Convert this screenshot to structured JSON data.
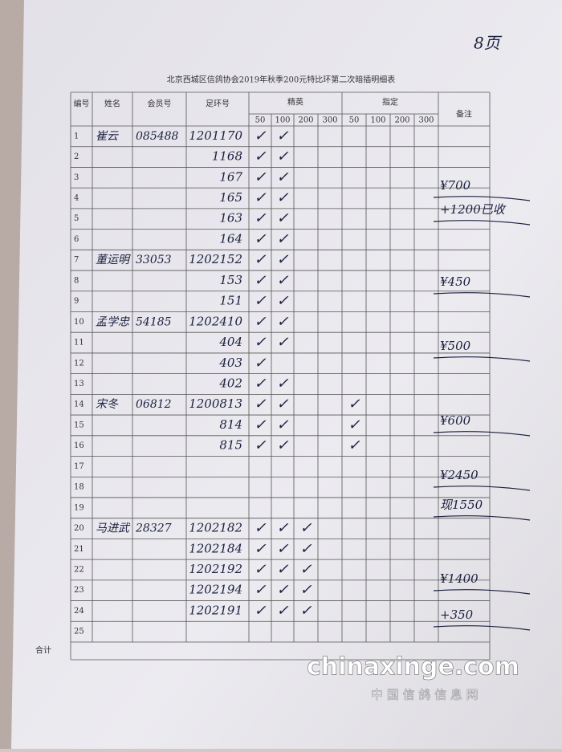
{
  "page_number": "8页",
  "title": "北京西城区信鸽协会2019年秋季200元特比环第二次暗插明细表",
  "header": {
    "no": "编号",
    "name": "姓名",
    "member": "会员号",
    "ring": "足环号",
    "elite": "精英",
    "designated": "指定",
    "elite_cols": [
      "50",
      "100",
      "200",
      "300"
    ],
    "designated_cols": [
      "50",
      "100",
      "200",
      "300"
    ],
    "remarks": "备注"
  },
  "rows": [
    [
      "1",
      "崔云",
      "085488",
      "1201170",
      "✓",
      "✓",
      null,
      null,
      null,
      null,
      null,
      null
    ],
    [
      "2",
      null,
      null,
      "1168",
      "✓",
      "✓",
      null,
      null,
      null,
      null,
      null,
      null
    ],
    [
      "3",
      null,
      null,
      "167",
      "✓",
      "✓",
      null,
      null,
      null,
      null,
      null,
      null
    ],
    [
      "4",
      null,
      null,
      "165",
      "✓",
      "✓",
      null,
      null,
      null,
      null,
      null,
      null
    ],
    [
      "5",
      null,
      null,
      "163",
      "✓",
      "✓",
      null,
      null,
      null,
      null,
      null,
      null
    ],
    [
      "6",
      null,
      null,
      "164",
      "✓",
      "✓",
      null,
      null,
      null,
      null,
      null,
      null
    ],
    [
      "7",
      "董运明",
      "33053",
      "1202152",
      "✓",
      "✓",
      null,
      null,
      null,
      null,
      null,
      null
    ],
    [
      "8",
      null,
      null,
      "153",
      "✓",
      "✓",
      null,
      null,
      null,
      null,
      null,
      null
    ],
    [
      "9",
      null,
      null,
      "151",
      "✓",
      "✓",
      null,
      null,
      null,
      null,
      null,
      null
    ],
    [
      "10",
      "孟学忠",
      "54185",
      "1202410",
      "✓",
      "✓",
      null,
      null,
      null,
      null,
      null,
      null
    ],
    [
      "11",
      null,
      null,
      "404",
      "✓",
      "✓",
      null,
      null,
      null,
      null,
      null,
      null
    ],
    [
      "12",
      null,
      null,
      "403",
      "✓",
      null,
      null,
      null,
      null,
      null,
      null,
      null
    ],
    [
      "13",
      null,
      null,
      "402",
      "✓",
      "✓",
      null,
      null,
      null,
      null,
      null,
      null
    ],
    [
      "14",
      "宋冬",
      "06812",
      "1200813",
      "✓",
      "✓",
      null,
      null,
      "✓",
      null,
      null,
      null
    ],
    [
      "15",
      null,
      null,
      "814",
      "✓",
      "✓",
      null,
      null,
      "✓",
      null,
      null,
      null
    ],
    [
      "16",
      null,
      null,
      "815",
      "✓",
      "✓",
      null,
      null,
      "✓",
      null,
      null,
      null
    ],
    [
      "17",
      null,
      null,
      null,
      null,
      null,
      null,
      null,
      null,
      null,
      null,
      null
    ],
    [
      "18",
      null,
      null,
      null,
      null,
      null,
      null,
      null,
      null,
      null,
      null,
      null
    ],
    [
      "19",
      null,
      null,
      null,
      null,
      null,
      null,
      null,
      null,
      null,
      null,
      null
    ],
    [
      "20",
      "马进武",
      "28327",
      "1202182",
      "✓",
      "✓",
      "✓",
      null,
      null,
      null,
      null,
      null
    ],
    [
      "21",
      null,
      null,
      "1202184",
      "✓",
      "✓",
      "✓",
      null,
      null,
      null,
      null,
      null
    ],
    [
      "22",
      null,
      null,
      "1202192",
      "✓",
      "✓",
      "✓",
      null,
      null,
      null,
      null,
      null
    ],
    [
      "23",
      null,
      null,
      "1202194",
      "✓",
      "✓",
      "✓",
      null,
      null,
      null,
      null,
      null
    ],
    [
      "24",
      null,
      null,
      "1202191",
      "✓",
      "✓",
      "✓",
      null,
      null,
      null,
      null,
      null
    ],
    [
      "25",
      null,
      null,
      null,
      null,
      null,
      null,
      null,
      null,
      null,
      null,
      null
    ]
  ],
  "total_label": "合计",
  "notes": [
    "¥700",
    "+1200已收",
    "¥450",
    "¥500",
    "¥600",
    "¥2450",
    "现1550",
    "¥1400",
    "+350"
  ],
  "watermark": {
    "site": "chinaxinge.com",
    "name": "中 国 信 鸽 信 息 网"
  }
}
